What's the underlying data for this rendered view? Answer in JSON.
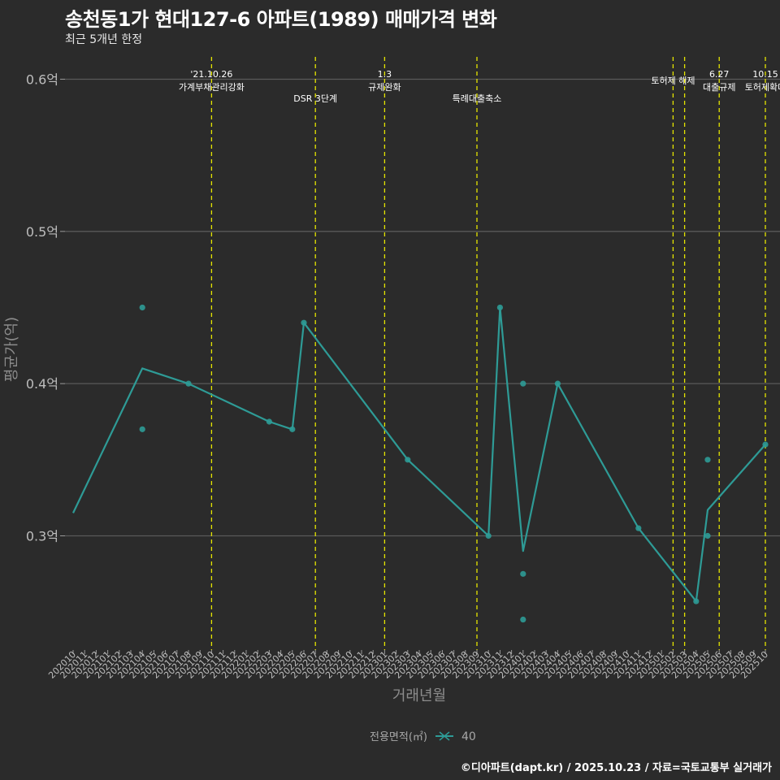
{
  "title": "송천동1가 현대127-6 아파트(1989) 매매가격 변화",
  "subtitle": "최근 5개년 한정",
  "caption": "©디아파트(dapt.kr) / 2025.10.23 / 자료=국토교통부 실거래가",
  "colors": {
    "background": "#2b2b2b",
    "series": "#2e9b96",
    "events": "#e5e500",
    "grid": "#5a5a5a",
    "text": "#bdbdbd"
  },
  "chart_data": {
    "type": "line",
    "title": "송천동1가 현대127-6 아파트(1989) 매매가격 변화",
    "xlabel": "거래년월",
    "ylabel": "평균가(억)",
    "ylim": [
      0.225,
      0.62
    ],
    "grid": true,
    "y_ticks": [
      {
        "value": 0.3,
        "label": "0.3억"
      },
      {
        "value": 0.4,
        "label": "0.4억"
      },
      {
        "value": 0.5,
        "label": "0.5억"
      },
      {
        "value": 0.6,
        "label": "0.6억"
      }
    ],
    "x_categories": [
      "202010",
      "202011",
      "202012",
      "202101",
      "202102",
      "202103",
      "202104",
      "202105",
      "202106",
      "202107",
      "202108",
      "202109",
      "202110",
      "202111",
      "202112",
      "202201",
      "202202",
      "202203",
      "202204",
      "202205",
      "202206",
      "202207",
      "202208",
      "202209",
      "202210",
      "202211",
      "202212",
      "202301",
      "202302",
      "202303",
      "202304",
      "202305",
      "202306",
      "202307",
      "202308",
      "202309",
      "202310",
      "202311",
      "202312",
      "202401",
      "202402",
      "202403",
      "202404",
      "202405",
      "202406",
      "202407",
      "202408",
      "202409",
      "202410",
      "202411",
      "202412",
      "202501",
      "202502",
      "202503",
      "202504",
      "202505",
      "202506",
      "202507",
      "202508",
      "202509",
      "202510"
    ],
    "legend": {
      "title": "전용면적(㎡)",
      "position": "bottom",
      "entries": [
        "40"
      ]
    },
    "series": [
      {
        "name": "40",
        "line": [
          {
            "x": "202010",
            "y": 0.315
          },
          {
            "x": "202104",
            "y": 0.41
          },
          {
            "x": "202108",
            "y": 0.4
          },
          {
            "x": "202203",
            "y": 0.375
          },
          {
            "x": "202205",
            "y": 0.37
          },
          {
            "x": "202206",
            "y": 0.44
          },
          {
            "x": "202303",
            "y": 0.35
          },
          {
            "x": "202310",
            "y": 0.3
          },
          {
            "x": "202311",
            "y": 0.45
          },
          {
            "x": "202401",
            "y": 0.29
          },
          {
            "x": "202404",
            "y": 0.4
          },
          {
            "x": "202411",
            "y": 0.305
          },
          {
            "x": "202504",
            "y": 0.257
          },
          {
            "x": "202505",
            "y": 0.317
          },
          {
            "x": "202510",
            "y": 0.36
          }
        ],
        "points": [
          {
            "x": "202104",
            "y": 0.45
          },
          {
            "x": "202104",
            "y": 0.37
          },
          {
            "x": "202108",
            "y": 0.4
          },
          {
            "x": "202203",
            "y": 0.375
          },
          {
            "x": "202205",
            "y": 0.37
          },
          {
            "x": "202206",
            "y": 0.44
          },
          {
            "x": "202303",
            "y": 0.35
          },
          {
            "x": "202310",
            "y": 0.3
          },
          {
            "x": "202311",
            "y": 0.45
          },
          {
            "x": "202401",
            "y": 0.4
          },
          {
            "x": "202401",
            "y": 0.275
          },
          {
            "x": "202401",
            "y": 0.245
          },
          {
            "x": "202404",
            "y": 0.4
          },
          {
            "x": "202411",
            "y": 0.305
          },
          {
            "x": "202504",
            "y": 0.257
          },
          {
            "x": "202505",
            "y": 0.35
          },
          {
            "x": "202505",
            "y": 0.3
          },
          {
            "x": "202510",
            "y": 0.36
          }
        ]
      }
    ],
    "events": [
      {
        "x": 12,
        "label1": "'21.10.26",
        "label2": "가계부채관리강화"
      },
      {
        "x": 21,
        "label1": "",
        "label2": "DSR 3단계"
      },
      {
        "x": 27,
        "label1": "1.3",
        "label2": "규제완화"
      },
      {
        "x": 35,
        "label1": "",
        "label2": "특례대출축소"
      },
      {
        "x": 52,
        "label1": "",
        "label2": "토허제 해제"
      },
      {
        "x": 53,
        "label1": "",
        "label2": ""
      },
      {
        "x": 56,
        "label1": "6.27",
        "label2": "대출규제"
      },
      {
        "x": 60,
        "label1": "10.15",
        "label2": "토허제확대"
      }
    ]
  }
}
